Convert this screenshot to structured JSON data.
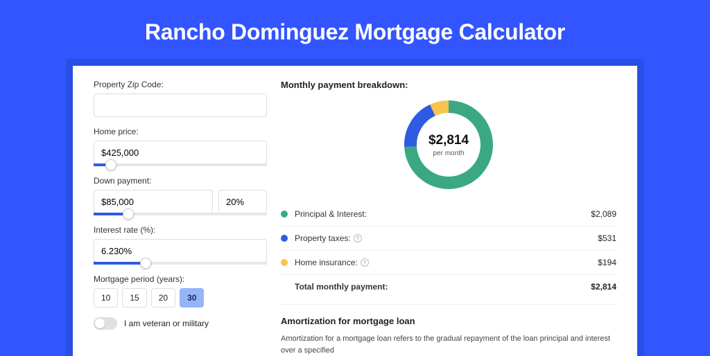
{
  "title": "Rancho Dominguez Mortgage Calculator",
  "colors": {
    "page_bg": "#3355ff",
    "card_wrap_bg": "#2a4fe6",
    "card_bg": "#ffffff",
    "accent": "#2d5be3",
    "period_active_bg": "#94b6f6",
    "text": "#222222",
    "border": "#dddddd",
    "divider": "#eeeeee"
  },
  "left": {
    "zip": {
      "label": "Property Zip Code:",
      "value": ""
    },
    "home_price": {
      "label": "Home price:",
      "value": "$425,000",
      "slider_pct": 10
    },
    "down_payment": {
      "label": "Down payment:",
      "value": "$85,000",
      "pct": "20%",
      "slider_pct": 20
    },
    "interest_rate": {
      "label": "Interest rate (%):",
      "value": "6.230%",
      "slider_pct": 30
    },
    "mortgage_period": {
      "label": "Mortgage period (years):",
      "options": [
        "10",
        "15",
        "20",
        "30"
      ],
      "selected": "30"
    },
    "veteran": {
      "label": "I am veteran or military",
      "checked": false
    }
  },
  "right": {
    "breakdown_title": "Monthly payment breakdown:",
    "donut": {
      "amount": "$2,814",
      "sub": "per month",
      "segments": [
        {
          "label": "Principal & Interest",
          "value": 2089,
          "color": "#3aa981",
          "start_deg": 0
        },
        {
          "label": "Property taxes",
          "value": 531,
          "color": "#2d5be3",
          "start_deg": 267
        },
        {
          "label": "Home insurance",
          "value": 194,
          "color": "#f5c451",
          "start_deg": 335
        }
      ],
      "total": 2814,
      "thickness": 18,
      "radius": 55,
      "inner_bg": "#ffffff"
    },
    "rows": [
      {
        "dot": "#3aa981",
        "label": "Principal & Interest:",
        "info": false,
        "value": "$2,089"
      },
      {
        "dot": "#2d5be3",
        "label": "Property taxes:",
        "info": true,
        "value": "$531"
      },
      {
        "dot": "#f5c451",
        "label": "Home insurance:",
        "info": true,
        "value": "$194"
      }
    ],
    "total": {
      "label": "Total monthly payment:",
      "value": "$2,814"
    },
    "amort": {
      "title": "Amortization for mortgage loan",
      "text": "Amortization for a mortgage loan refers to the gradual repayment of the loan principal and interest over a specified"
    }
  }
}
